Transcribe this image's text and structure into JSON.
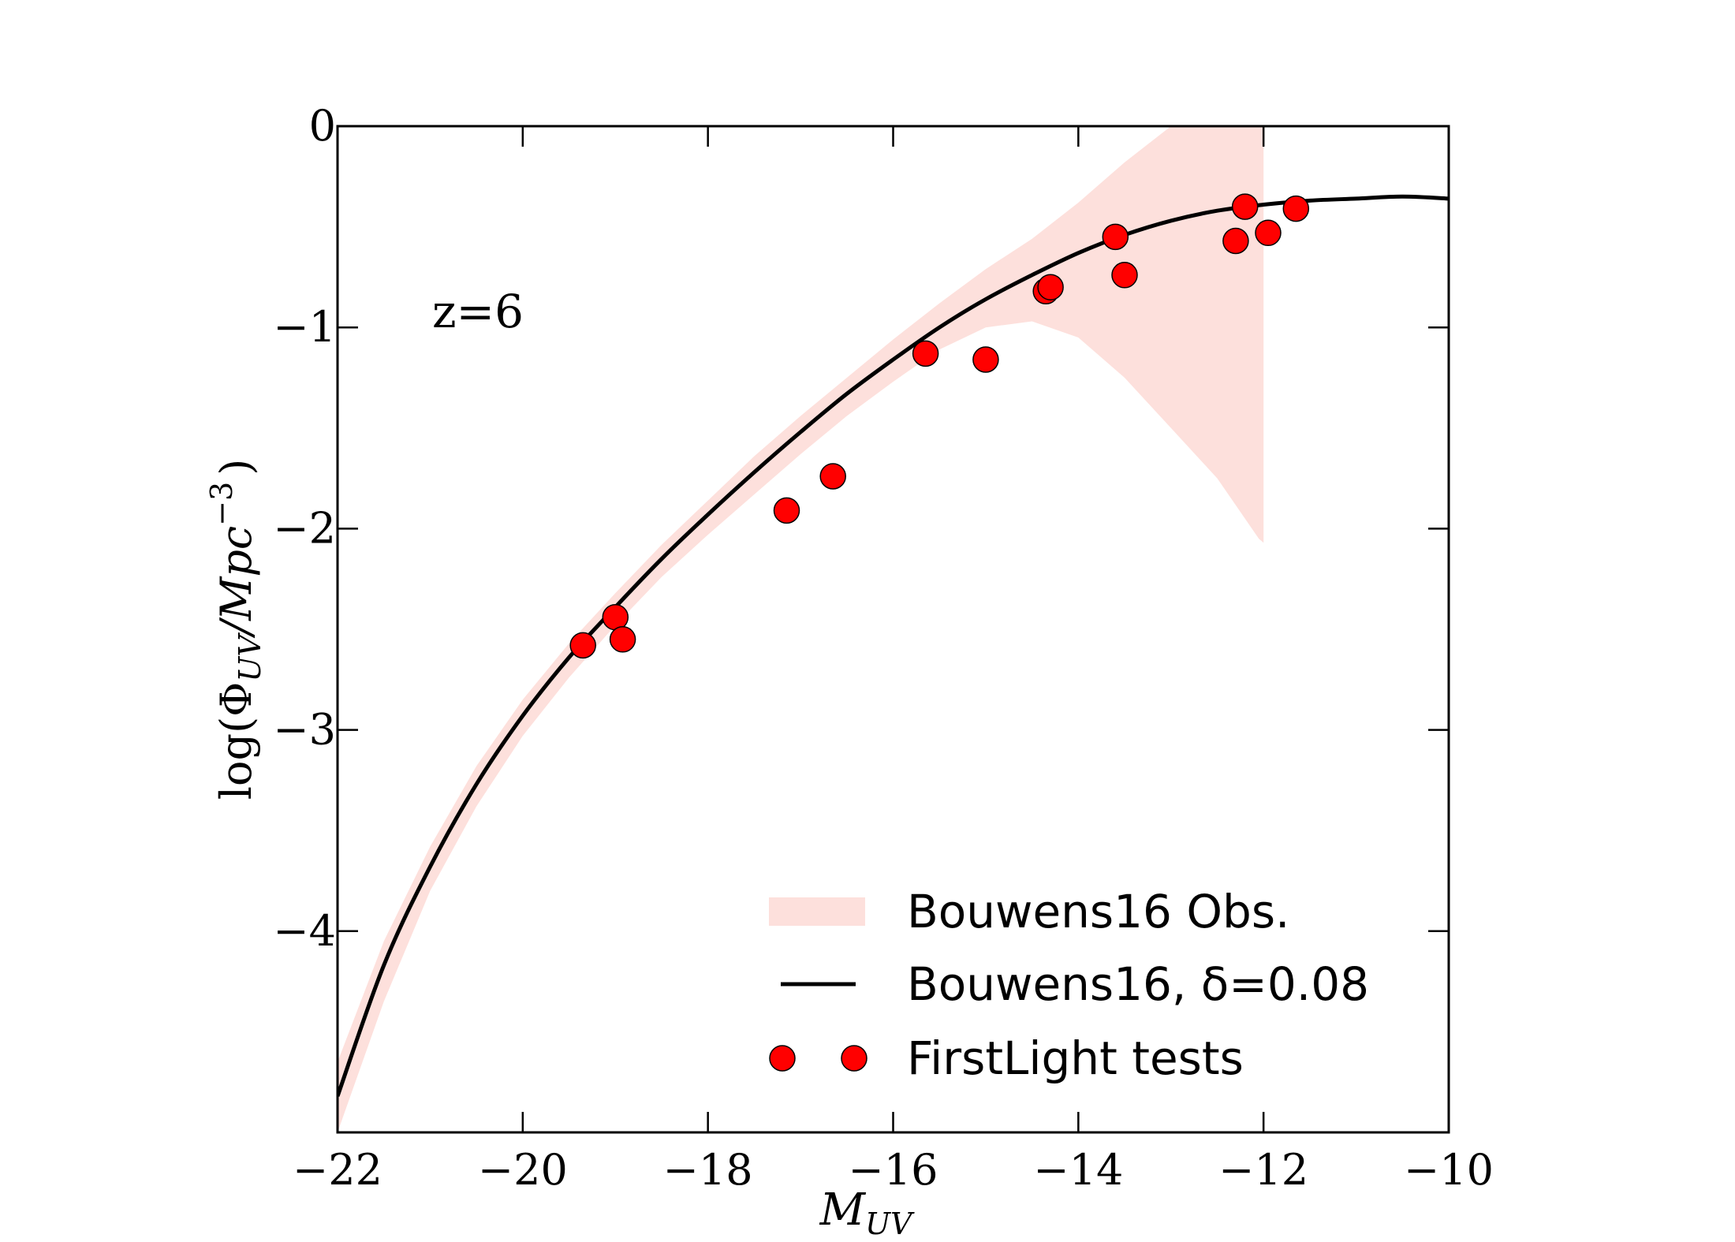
{
  "chart_data": {
    "type": "line",
    "xlabel": "M",
    "xlabel_sub": "UV",
    "ylabel_parts": {
      "prefix": "log(Φ",
      "sub": "UV",
      "mid": "/Mpc",
      "sup": "−3",
      "suffix": ")"
    },
    "xlim": [
      -22,
      -10
    ],
    "ylim": [
      -5,
      0
    ],
    "xticks": [
      -22,
      -20,
      -18,
      -16,
      -14,
      -12,
      -10
    ],
    "xtick_labels": [
      "−22",
      "−20",
      "−18",
      "−16",
      "−14",
      "−12",
      "−10"
    ],
    "yticks": [
      0,
      -1,
      -2,
      -3,
      -4
    ],
    "ytick_labels": [
      "0",
      "−1",
      "−2",
      "−3",
      "−4"
    ],
    "annotation": "z=6",
    "legend_position": "lower right",
    "colors": {
      "band": "#fde0dc",
      "line": "#000000",
      "points": "#ff0000"
    },
    "series": [
      {
        "name": "Bouwens16 Obs.",
        "kind": "band",
        "x": [
          -22.0,
          -21.5,
          -21.0,
          -20.5,
          -20.0,
          -19.5,
          -19.0,
          -18.5,
          -18.0,
          -17.5,
          -17.0,
          -16.5,
          -16.0,
          -15.5,
          -15.0,
          -14.5,
          -14.0,
          -13.5,
          -13.0,
          -12.5,
          -12.05,
          -12.0
        ],
        "upper": [
          -4.65,
          -4.05,
          -3.58,
          -3.18,
          -2.85,
          -2.57,
          -2.32,
          -2.08,
          -1.86,
          -1.64,
          -1.44,
          -1.25,
          -1.06,
          -0.88,
          -0.71,
          -0.56,
          -0.38,
          -0.18,
          0.0,
          0.0,
          0.0,
          0.0
        ],
        "lower": [
          -5.0,
          -4.35,
          -3.8,
          -3.38,
          -3.03,
          -2.74,
          -2.48,
          -2.24,
          -2.03,
          -1.83,
          -1.63,
          -1.44,
          -1.27,
          -1.11,
          -1.0,
          -0.97,
          -1.05,
          -1.25,
          -1.5,
          -1.75,
          -2.05,
          -2.07
        ]
      },
      {
        "name": "Bouwens16, δ=0.08",
        "kind": "line",
        "x": [
          -22.0,
          -21.5,
          -21.0,
          -20.5,
          -20.0,
          -19.5,
          -19.0,
          -18.5,
          -18.0,
          -17.5,
          -17.0,
          -16.5,
          -16.0,
          -15.5,
          -15.0,
          -14.5,
          -14.0,
          -13.5,
          -13.0,
          -12.5,
          -12.0,
          -11.5,
          -11.0,
          -10.5,
          -10.0
        ],
        "y": [
          -4.82,
          -4.17,
          -3.68,
          -3.27,
          -2.93,
          -2.64,
          -2.39,
          -2.15,
          -1.93,
          -1.72,
          -1.52,
          -1.33,
          -1.16,
          -1.0,
          -0.86,
          -0.74,
          -0.63,
          -0.54,
          -0.47,
          -0.42,
          -0.39,
          -0.37,
          -0.36,
          -0.35,
          -0.36
        ]
      },
      {
        "name": "FirstLight tests",
        "kind": "scatter",
        "x": [
          -19.35,
          -19.0,
          -18.92,
          -17.15,
          -16.65,
          -15.65,
          -15.0,
          -14.35,
          -14.3,
          -13.6,
          -13.5,
          -12.3,
          -12.2,
          -11.95,
          -11.65
        ],
        "y": [
          -2.58,
          -2.44,
          -2.55,
          -1.91,
          -1.74,
          -1.13,
          -1.16,
          -0.82,
          -0.8,
          -0.55,
          -0.74,
          -0.57,
          -0.4,
          -0.53,
          -0.41
        ]
      }
    ],
    "legend": [
      "Bouwens16 Obs.",
      "Bouwens16, δ=0.08",
      "FirstLight tests"
    ]
  }
}
